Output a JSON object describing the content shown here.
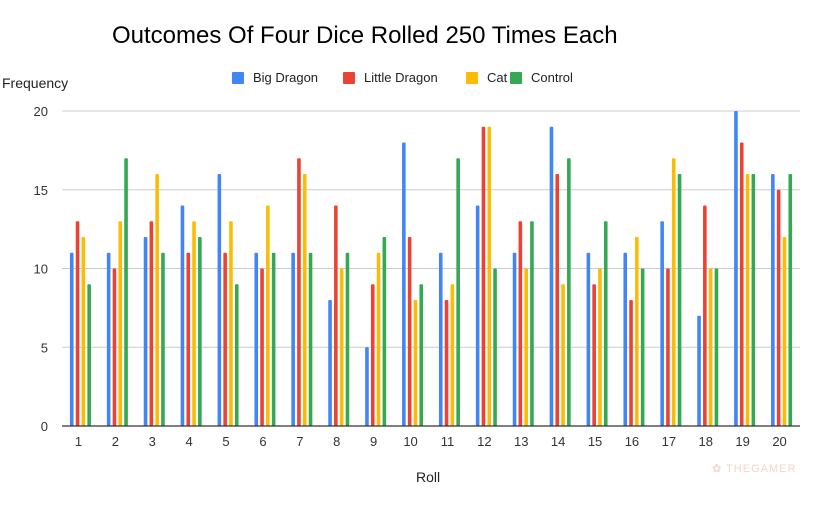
{
  "chart_data": {
    "type": "bar",
    "title": "Outcomes Of Four Dice Rolled 250 Times Each",
    "xlabel": "Roll",
    "ylabel": "Frequency",
    "ylim": [
      0,
      20
    ],
    "yticks": [
      0,
      5,
      10,
      15,
      20
    ],
    "grid": true,
    "legend": "top",
    "categories": [
      "1",
      "2",
      "3",
      "4",
      "5",
      "6",
      "7",
      "8",
      "9",
      "10",
      "11",
      "12",
      "13",
      "14",
      "15",
      "16",
      "17",
      "18",
      "19",
      "20"
    ],
    "series": [
      {
        "name": "Big Dragon",
        "color": "#4285f4",
        "values": [
          11,
          11,
          12,
          14,
          16,
          11,
          11,
          8,
          5,
          18,
          11,
          14,
          11,
          19,
          11,
          11,
          13,
          7,
          20,
          16
        ]
      },
      {
        "name": "Little Dragon",
        "color": "#ea4335",
        "values": [
          13,
          10,
          13,
          11,
          11,
          10,
          17,
          14,
          9,
          12,
          8,
          19,
          13,
          16,
          9,
          8,
          10,
          14,
          18,
          15
        ]
      },
      {
        "name": "Cat",
        "color": "#fbbc04",
        "values": [
          12,
          13,
          16,
          13,
          13,
          14,
          16,
          10,
          11,
          8,
          9,
          19,
          10,
          9,
          10,
          12,
          17,
          10,
          16,
          12
        ]
      },
      {
        "name": "Control",
        "color": "#34a853",
        "values": [
          9,
          17,
          11,
          12,
          9,
          11,
          11,
          11,
          12,
          9,
          17,
          10,
          13,
          17,
          13,
          10,
          16,
          10,
          16,
          16
        ]
      }
    ]
  },
  "watermark": "THEGAMER"
}
